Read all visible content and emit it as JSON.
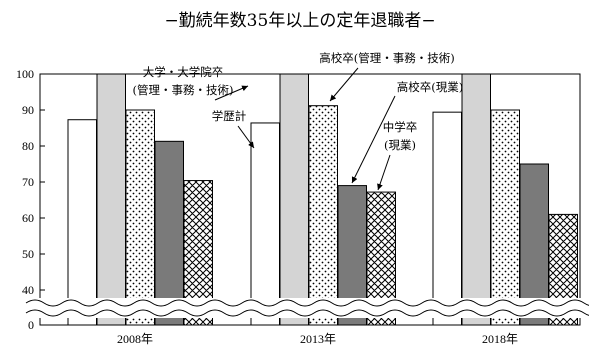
{
  "chart_data": {
    "type": "bar",
    "title": "−勤続年数35年以上の定年退職者−",
    "categories": [
      "2008年",
      "2013年",
      "2018年"
    ],
    "ylim": [
      0,
      100
    ],
    "yticks": [
      "0",
      "40",
      "50",
      "60",
      "70",
      "80",
      "90",
      "100"
    ],
    "axis_break": [
      0,
      40
    ],
    "grid": false,
    "series": [
      {
        "name": "学歴計",
        "values": [
          87.3,
          86.4,
          89.4
        ],
        "pattern": "white"
      },
      {
        "name": "大学・大学院卒(管理・事務・技術)",
        "values": [
          100,
          100,
          100
        ],
        "pattern": "light-gray"
      },
      {
        "name": "高校卒(管理・事務・技術)",
        "values": [
          90,
          91.2,
          90
        ],
        "pattern": "dots"
      },
      {
        "name": "高校卒(現業)",
        "values": [
          81.3,
          69,
          75
        ],
        "pattern": "dark-gray"
      },
      {
        "name": "中学卒(現業)",
        "values": [
          70.4,
          67.2,
          61
        ],
        "pattern": "crosshatch"
      }
    ],
    "annotations": {
      "daigaku": [
        "大学・大学院卒",
        "(管理・事務・技術)"
      ],
      "gakureki": "学歴計",
      "koukou_kanri": "高校卒(管理・事務・技術)",
      "koukou_gengyou": "高校卒(現業)",
      "chugaku": [
        "中学卒",
        "(現業)"
      ]
    }
  }
}
